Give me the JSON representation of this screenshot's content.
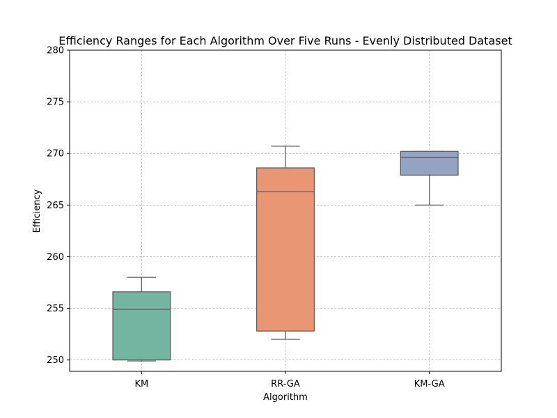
{
  "chart_data": {
    "type": "box",
    "title": "Efficiency Ranges for Each Algorithm Over Five Runs - Evenly Distributed Dataset",
    "xlabel": "Algorithm",
    "ylabel": "Efficiency",
    "ylim": [
      248.9,
      280
    ],
    "yticks": [
      250,
      255,
      260,
      265,
      270,
      275,
      280
    ],
    "categories": [
      "KM",
      "RR-GA",
      "KM-GA"
    ],
    "boxes": [
      {
        "name": "KM",
        "whisker_low": 249.9,
        "q1": 250.0,
        "median": 254.9,
        "q3": 256.6,
        "whisker_high": 258.0,
        "color": "#72b6a1"
      },
      {
        "name": "RR-GA",
        "whisker_low": 252.0,
        "q1": 252.8,
        "median": 266.3,
        "q3": 268.6,
        "whisker_high": 270.7,
        "color": "#e99675"
      },
      {
        "name": "KM-GA",
        "whisker_low": 265.0,
        "q1": 267.9,
        "median": 269.6,
        "q3": 270.2,
        "whisker_high": 270.2,
        "color": "#95a3c3"
      }
    ],
    "grid": true
  }
}
